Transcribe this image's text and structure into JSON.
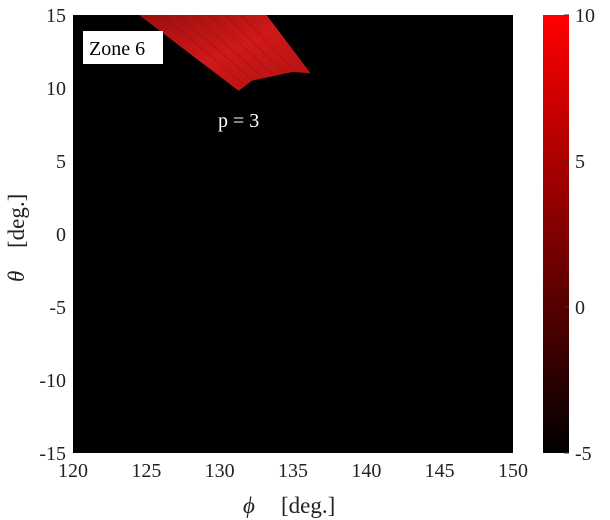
{
  "chart_data": {
    "type": "heatmap",
    "xlabel_symbol": "ϕ",
    "xlabel_unit": "[deg.]",
    "ylabel_symbol": "θ",
    "ylabel_unit": "[deg.]",
    "xlim": [
      120,
      150
    ],
    "ylim": [
      -15,
      15
    ],
    "x_ticks": [
      "120",
      "125",
      "130",
      "135",
      "140",
      "145",
      "150"
    ],
    "y_ticks": [
      "15",
      "10",
      "5",
      "0",
      "-5",
      "-10",
      "-15"
    ],
    "background_color": "#000000",
    "colormap": [
      "#000000",
      "#ff0000"
    ],
    "colorbar": {
      "range": [
        -5,
        10
      ],
      "ticks": [
        "10",
        "5",
        "0",
        "-5"
      ]
    },
    "zone_label": "Zone 6",
    "annotation": "p = 3",
    "region": {
      "label": "p = 3",
      "color": "#c81414",
      "polygon_deg": [
        [
          124.5,
          15
        ],
        [
          133.2,
          15
        ],
        [
          136.2,
          11.0
        ],
        [
          135.0,
          11.1
        ],
        [
          132.2,
          10.5
        ],
        [
          131.3,
          9.8
        ],
        [
          124.5,
          15
        ]
      ]
    }
  }
}
